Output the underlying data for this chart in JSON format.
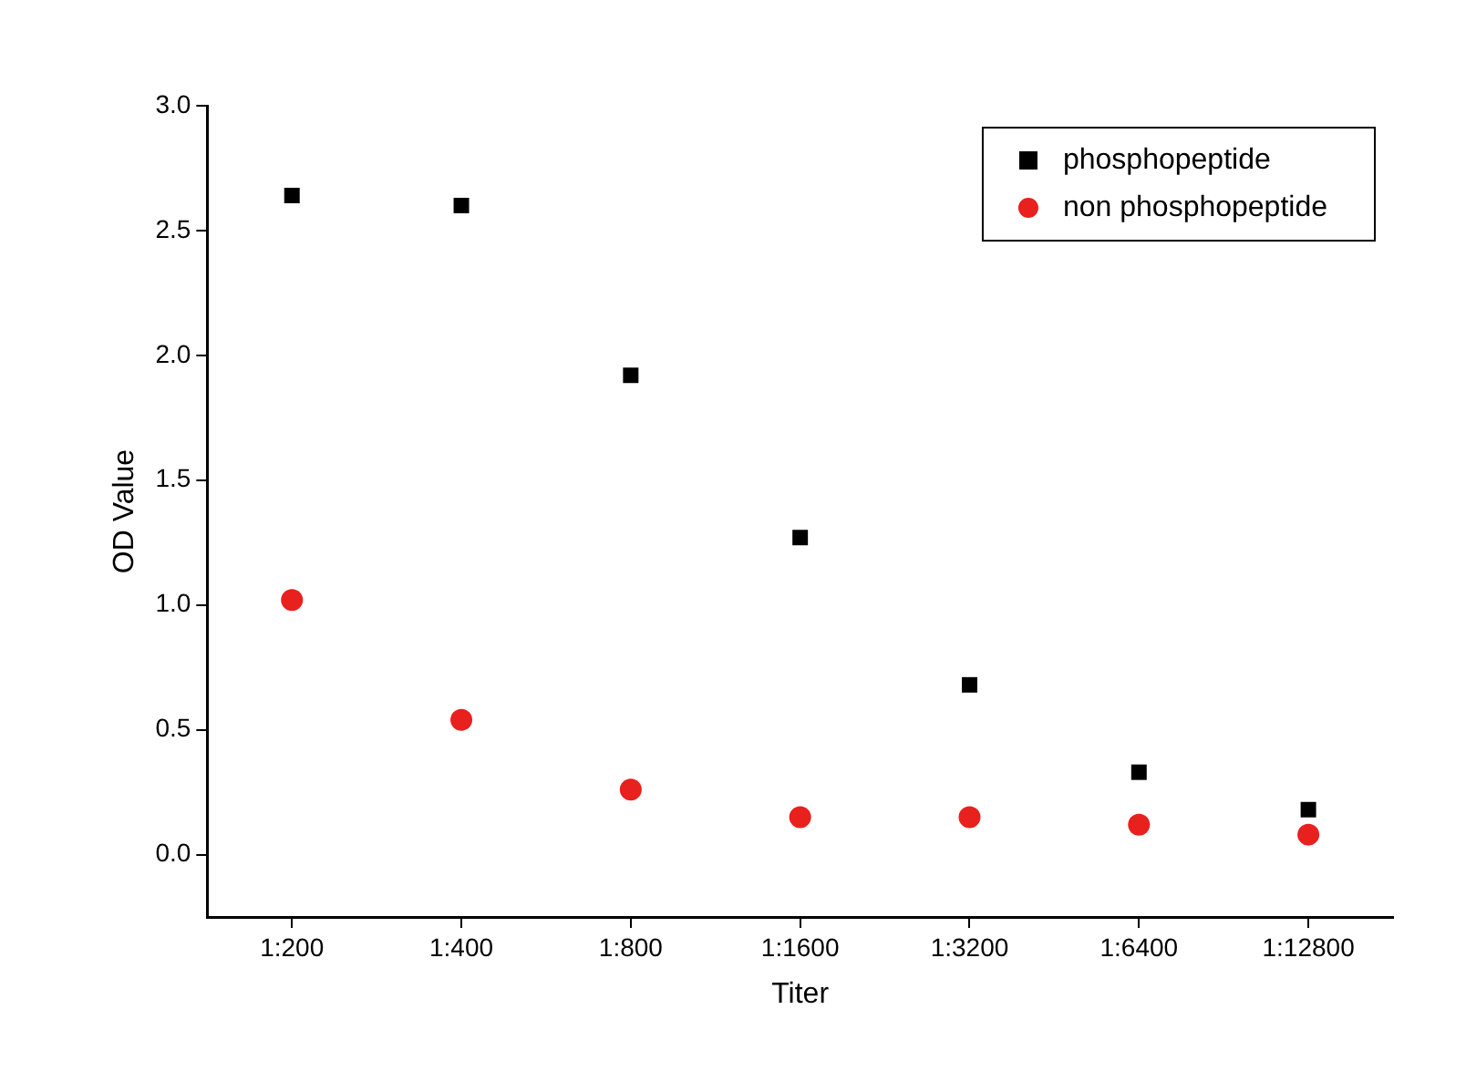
{
  "chart_data": {
    "type": "scatter",
    "xlabel": "Titer",
    "ylabel": "OD Value",
    "categories": [
      "1:200",
      "1:400",
      "1:800",
      "1:1600",
      "1:3200",
      "1:6400",
      "1:12800"
    ],
    "series": [
      {
        "name": "phosphopeptide",
        "color": "#000000",
        "marker": "square",
        "values": [
          2.64,
          2.6,
          1.92,
          1.27,
          0.68,
          0.33,
          0.18
        ]
      },
      {
        "name": "non phosphopeptide",
        "color": "#e8201e",
        "marker": "circle",
        "values": [
          1.02,
          0.54,
          0.26,
          0.15,
          0.15,
          0.12,
          0.08
        ]
      }
    ],
    "ylim": [
      -0.25,
      3.0
    ],
    "yticks": [
      {
        "value": 0,
        "label": "0.0"
      },
      0.5,
      {
        "value": 1,
        "label": "1.0"
      },
      1.5,
      {
        "value": 2,
        "label": "2.0"
      },
      2.5,
      {
        "value": 3,
        "label": "3.0"
      }
    ],
    "grid": false,
    "legend": "top right"
  }
}
